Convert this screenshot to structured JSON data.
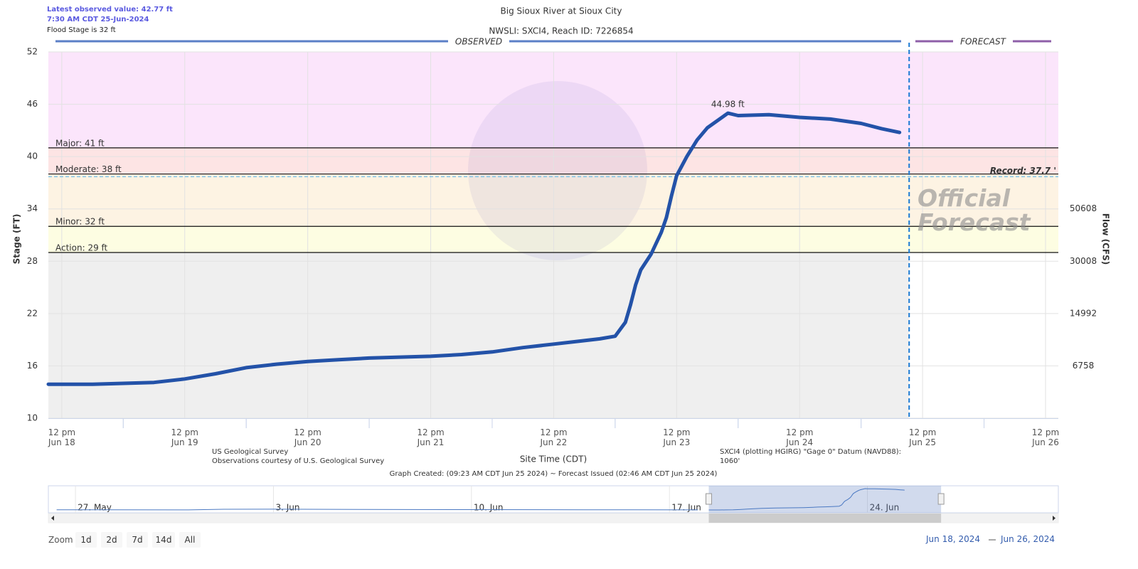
{
  "header": {
    "latest": "Latest observed value: 42.77 ft",
    "latest_time": "7:30 AM CDT 25-Jun-2024",
    "flood_stage": "Flood Stage is 32 ft"
  },
  "chart_data": {
    "type": "line",
    "title": "Big Sioux River at Sioux City",
    "subtitle": "NWSLI: SXCI4, Reach ID: 7226854",
    "observed_label": "OBSERVED",
    "observed_color": "#5b7fc7",
    "forecast_label": "FORECAST",
    "forecast_color": "#8e5fa8",
    "forecast_watermark": "Official\nForecast",
    "x_label": "Site Time (CDT)",
    "y_label": "Stage (FT)",
    "y2_label": "Flow (CFS)",
    "xlim": [
      "2024-06-18 09:23",
      "2024-06-26 14:30"
    ],
    "xticks": [
      {
        "value": "2024-06-18 12:00",
        "label": "12 pm\nJun 18"
      },
      {
        "value": "2024-06-19 12:00",
        "label": "12 pm\nJun 19"
      },
      {
        "value": "2024-06-20 12:00",
        "label": "12 pm\nJun 20"
      },
      {
        "value": "2024-06-21 12:00",
        "label": "12 pm\nJun 21"
      },
      {
        "value": "2024-06-22 12:00",
        "label": "12 pm\nJun 22"
      },
      {
        "value": "2024-06-23 12:00",
        "label": "12 pm\nJun 23"
      },
      {
        "value": "2024-06-24 12:00",
        "label": "12 pm\nJun 24"
      },
      {
        "value": "2024-06-25 12:00",
        "label": "12 pm\nJun 25"
      },
      {
        "value": "2024-06-26 12:00",
        "label": "12 pm\nJun 26"
      }
    ],
    "ylim": [
      10,
      52
    ],
    "yticks": [
      10,
      16,
      22,
      28,
      34,
      40,
      46,
      52
    ],
    "flow_ticks": [
      {
        "stage": 16,
        "flow": 6758
      },
      {
        "stage": 22,
        "flow": 14992
      },
      {
        "stage": 28,
        "flow": 30008
      },
      {
        "stage": 34,
        "flow": 50608
      }
    ],
    "grid": true,
    "base_color": "#efefef",
    "flood_categories": [
      {
        "label": "Action: 29 ft",
        "value": 29,
        "color": "#fdfde2"
      },
      {
        "label": "Minor: 32 ft",
        "value": 32,
        "color": "#fdf3e3"
      },
      {
        "label": "Moderate: 38 ft",
        "value": 38,
        "color": "#fde4e4"
      },
      {
        "label": "Major: 41 ft",
        "value": 41,
        "color": "#fbe5fb"
      }
    ],
    "record": {
      "label": "Record: 37.7 '",
      "value": 37.7,
      "color": "#7ec3e6"
    },
    "now": "2024-06-25 09:23",
    "series": [
      {
        "color": "#2352a8",
        "x": [
          "2024-06-18 09:23",
          "2024-06-18 18:00",
          "2024-06-19 00:00",
          "2024-06-19 06:00",
          "2024-06-19 12:00",
          "2024-06-19 18:00",
          "2024-06-20 00:00",
          "2024-06-20 06:00",
          "2024-06-20 12:00",
          "2024-06-20 18:00",
          "2024-06-21 00:00",
          "2024-06-21 12:00",
          "2024-06-21 18:00",
          "2024-06-22 00:00",
          "2024-06-22 06:00",
          "2024-06-22 12:00",
          "2024-06-22 18:00",
          "2024-06-22 21:00",
          "2024-06-23 00:00",
          "2024-06-23 02:00",
          "2024-06-23 03:00",
          "2024-06-23 04:00",
          "2024-06-23 05:00",
          "2024-06-23 07:00",
          "2024-06-23 09:00",
          "2024-06-23 10:00",
          "2024-06-23 11:00",
          "2024-06-23 12:00",
          "2024-06-23 14:00",
          "2024-06-23 16:00",
          "2024-06-23 18:00",
          "2024-06-23 22:00",
          "2024-06-24 00:00",
          "2024-06-24 06:00",
          "2024-06-24 12:00",
          "2024-06-24 18:00",
          "2024-06-25 00:00",
          "2024-06-25 04:00",
          "2024-06-25 07:30"
        ],
        "values": [
          13.9,
          13.9,
          14.0,
          14.1,
          14.5,
          15.1,
          15.8,
          16.2,
          16.5,
          16.7,
          16.9,
          17.1,
          17.3,
          17.6,
          18.1,
          18.5,
          18.9,
          19.1,
          19.4,
          21.0,
          23.0,
          25.3,
          27.0,
          28.8,
          31.3,
          33.0,
          35.5,
          37.8,
          40.0,
          41.9,
          43.3,
          44.98,
          44.7,
          44.8,
          44.5,
          44.3,
          43.8,
          43.2,
          42.77
        ],
        "value_labels": [
          null,
          null,
          null,
          null,
          null,
          null,
          null,
          null,
          null,
          null,
          null,
          null,
          null,
          null,
          null,
          null,
          null,
          null,
          null,
          null,
          null,
          null,
          null,
          null,
          null,
          null,
          null,
          null,
          null,
          null,
          null,
          "44.98 ft",
          null,
          null,
          null,
          null,
          null,
          null,
          null
        ]
      }
    ],
    "source": "US Geological Survey\nObservations courtesy of U.S. Geological Survey",
    "datum": "SXCI4 (plotting HGIRG) \"Gage 0\" Datum (NAVD88):\n1060'",
    "created": "Graph Created: (09:23 AM CDT Jun 25 2024) ~ Forecast Issued (02:46 AM CDT Jun 25 2024)"
  },
  "navigator": {
    "xlim": [
      "2024-05-26 01:00",
      "2024-06-30 18:00"
    ],
    "xticks": [
      {
        "value": "2024-05-27 00:00",
        "label": "27. May"
      },
      {
        "value": "2024-06-03 00:00",
        "label": "3. Jun"
      },
      {
        "value": "2024-06-10 00:00",
        "label": "10. Jun"
      },
      {
        "value": "2024-06-17 00:00",
        "label": "17. Jun"
      },
      {
        "value": "2024-06-24 00:00",
        "label": "24. Jun"
      }
    ],
    "x": [
      "2024-05-26 08:00",
      "2024-05-28 00:00",
      "2024-05-31 00:00",
      "2024-06-01 06:00",
      "2024-06-03 00:00",
      "2024-06-06 00:00",
      "2024-06-10 00:00",
      "2024-06-14 00:00",
      "2024-06-18 00:00"
    ],
    "values": [
      14.2,
      14.1,
      14.0,
      14.9,
      15.0,
      14.7,
      14.4,
      14.2,
      14.0
    ],
    "color": "#4a78c2"
  },
  "zoom": {
    "label": "Zoom",
    "buttons": [
      "1d",
      "2d",
      "7d",
      "14d",
      "All"
    ]
  },
  "range": {
    "from": "Jun 18, 2024",
    "to": "Jun 26, 2024"
  }
}
